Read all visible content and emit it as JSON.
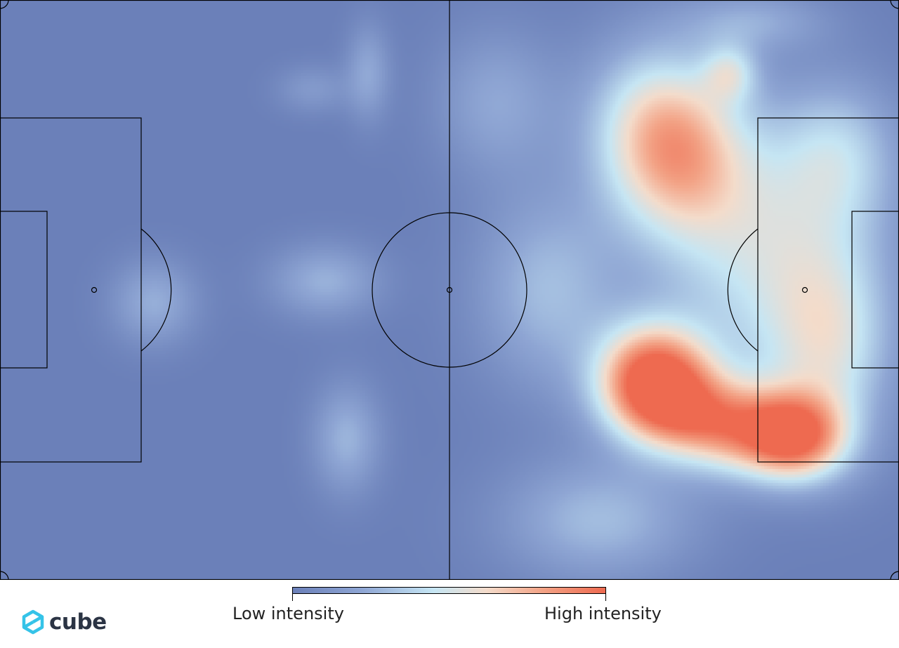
{
  "chart_data": {
    "type": "heatmap",
    "subject": "football pitch heatmap",
    "pitch": {
      "length": 105,
      "width": 68,
      "background_color": "#6b80b9"
    },
    "colorscale": [
      "#6b80b9",
      "#8fa6d4",
      "#c6e6f4",
      "#f4dccb",
      "#f3a386",
      "#ee6a50"
    ],
    "hotspots": [
      {
        "x": 78.1,
        "y": 16.8,
        "intensity": 0.78,
        "sx": 6.0,
        "sy": 7.5,
        "rot": -15
      },
      {
        "x": 85.3,
        "y": 8.5,
        "intensity": 0.33,
        "sx": 2.3,
        "sy": 2.4,
        "rot": 0
      },
      {
        "x": 76.5,
        "y": 44.5,
        "intensity": 1.0,
        "sx": 4.6,
        "sy": 4.5,
        "rot": 25
      },
      {
        "x": 85.0,
        "y": 50.0,
        "intensity": 0.78,
        "sx": 7.5,
        "sy": 3.8,
        "rot": 12
      },
      {
        "x": 93.0,
        "y": 51.0,
        "intensity": 0.6,
        "sx": 4.0,
        "sy": 3.5,
        "rot": 0
      },
      {
        "x": 90.0,
        "y": 30.0,
        "intensity": 0.44,
        "sx": 9.0,
        "sy": 11.0,
        "rot": 0
      },
      {
        "x": 64.0,
        "y": 34.0,
        "intensity": 0.3,
        "sx": 6.0,
        "sy": 8.0,
        "rot": 0
      },
      {
        "x": 70.0,
        "y": 61.0,
        "intensity": 0.3,
        "sx": 8.0,
        "sy": 5.0,
        "rot": 0
      },
      {
        "x": 98.0,
        "y": 18.0,
        "intensity": 0.3,
        "sx": 5.0,
        "sy": 6.0,
        "rot": 0
      },
      {
        "x": 97.0,
        "y": 41.0,
        "intensity": 0.38,
        "sx": 5.0,
        "sy": 8.0,
        "rot": 0
      },
      {
        "x": 58.0,
        "y": 12.0,
        "intensity": 0.22,
        "sx": 5.0,
        "sy": 6.0,
        "rot": 0
      },
      {
        "x": 88.0,
        "y": 2.5,
        "intensity": 0.22,
        "sx": 6.0,
        "sy": 2.5,
        "rot": 0
      },
      {
        "x": 38.0,
        "y": 33.0,
        "intensity": 0.26,
        "sx": 4.5,
        "sy": 3.0,
        "rot": 0
      },
      {
        "x": 40.5,
        "y": 51.5,
        "intensity": 0.27,
        "sx": 2.8,
        "sy": 4.5,
        "rot": 0
      },
      {
        "x": 18.0,
        "y": 35.5,
        "intensity": 0.25,
        "sx": 3.5,
        "sy": 3.5,
        "rot": 0
      },
      {
        "x": 43.0,
        "y": 8.5,
        "intensity": 0.22,
        "sx": 1.8,
        "sy": 4.0,
        "rot": 0
      },
      {
        "x": 36.5,
        "y": 10.5,
        "intensity": 0.15,
        "sx": 3.0,
        "sy": 2.0,
        "rot": 0
      }
    ]
  },
  "legend": {
    "low_label": "Low intensity",
    "high_label": "High intensity"
  },
  "brand": {
    "name": "cube",
    "icon": "cube-logo-icon",
    "icon_color": "#35c3e8",
    "text_color": "#2b3444"
  }
}
